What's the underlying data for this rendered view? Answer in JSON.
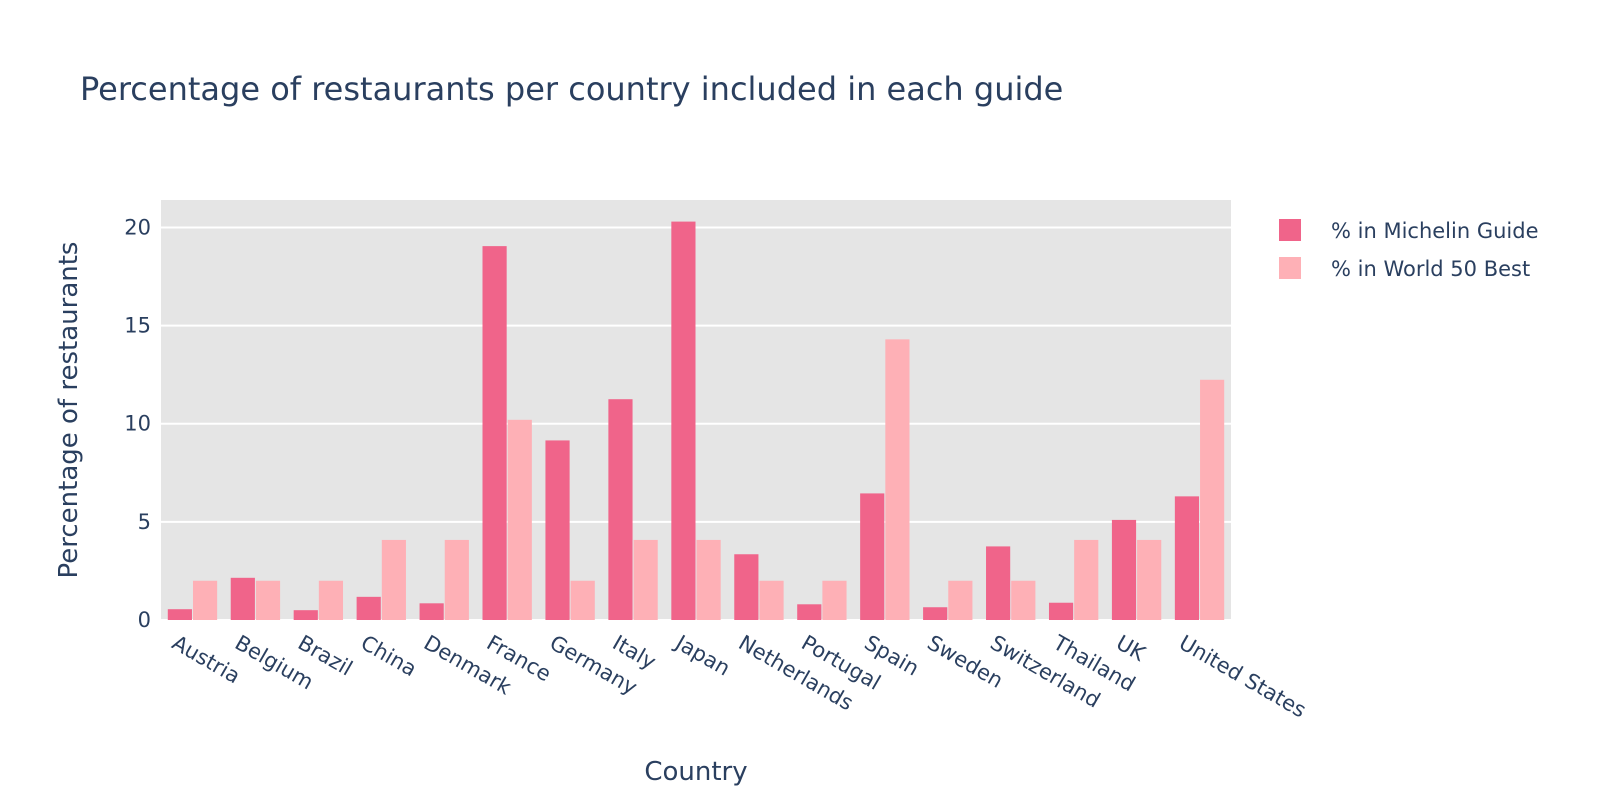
{
  "chart_data": {
    "type": "bar",
    "title": "Percentage of restaurants per country included in each guide",
    "xlabel": "Country",
    "ylabel": "Percentage of restaurants",
    "ylim": [
      0,
      21.4
    ],
    "yticks": [
      0,
      5,
      10,
      15,
      20
    ],
    "grid": true,
    "legend_position": "top-right",
    "categories": [
      "Austria",
      "Belgium",
      "Brazil",
      "China",
      "Denmark",
      "France",
      "Germany",
      "Italy",
      "Japan",
      "Netherlands",
      "Portugal",
      "Spain",
      "Sweden",
      "Switzerland",
      "Thailand",
      "UK",
      "United States"
    ],
    "series": [
      {
        "name": "% in Michelin Guide",
        "color": "#f0648a",
        "values": [
          0.55,
          2.15,
          0.5,
          1.18,
          0.85,
          19.05,
          9.15,
          11.25,
          20.3,
          3.35,
          0.8,
          6.45,
          0.65,
          3.75,
          0.88,
          5.1,
          6.3
        ]
      },
      {
        "name": "% in World 50 Best",
        "color": "#feb0b6",
        "values": [
          2.0,
          2.0,
          2.0,
          4.08,
          4.08,
          10.2,
          2.0,
          4.08,
          4.08,
          2.0,
          2.0,
          14.3,
          2.0,
          2.0,
          4.08,
          4.08,
          12.24
        ]
      }
    ],
    "plot_background": "#e5e5e5"
  }
}
